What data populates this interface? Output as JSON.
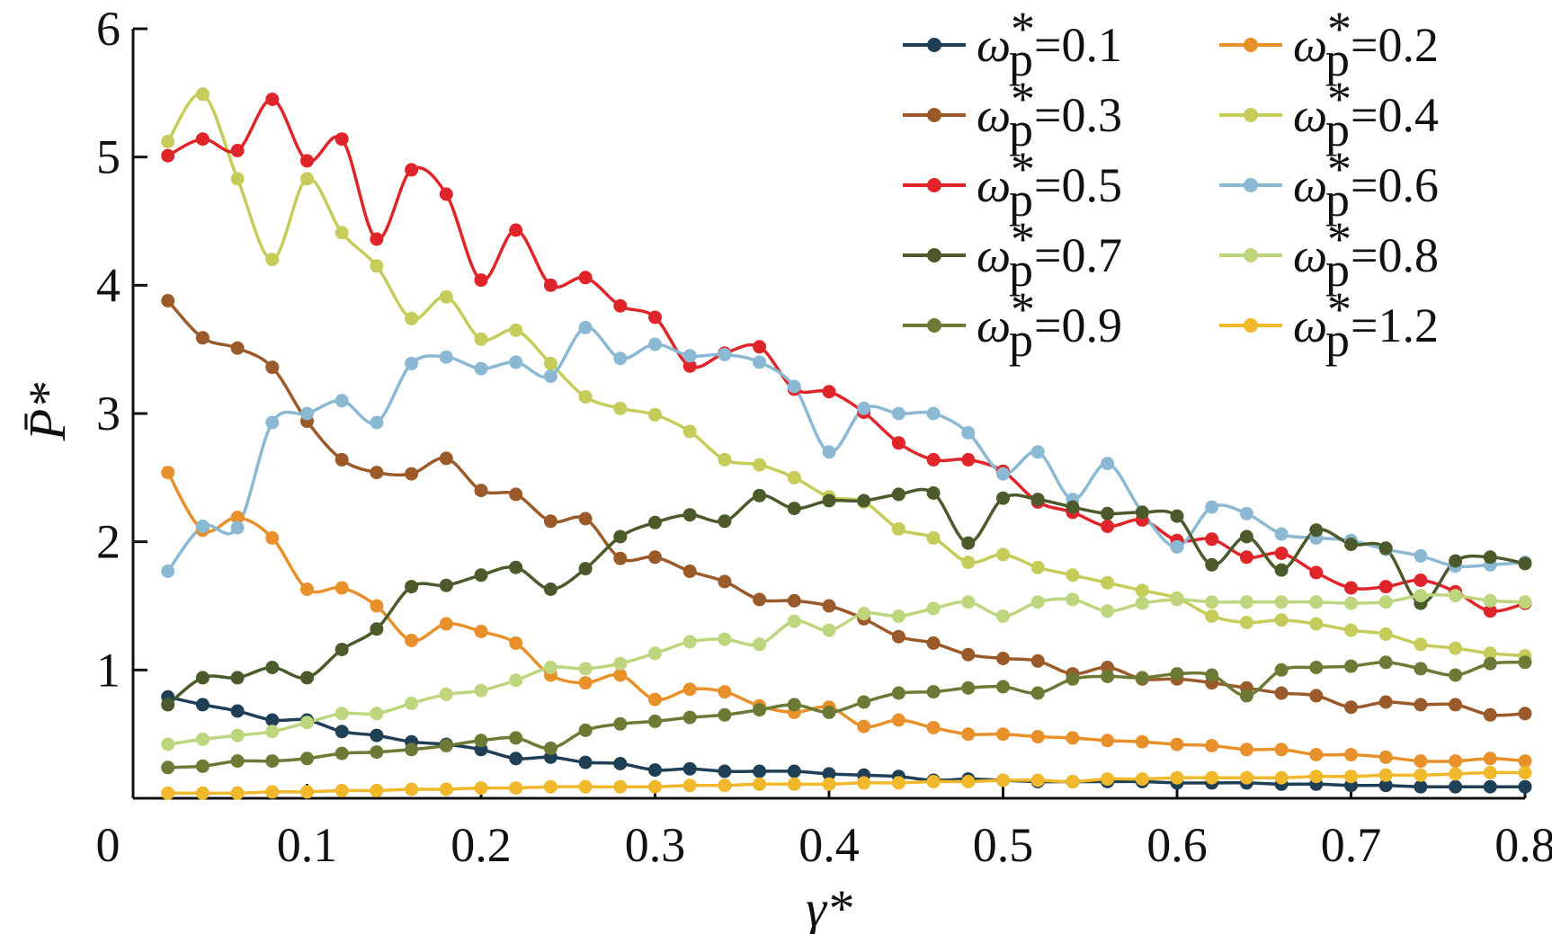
{
  "chart_data": {
    "type": "line",
    "xlabel": "γ*",
    "ylabel": "P̄*",
    "xlim": [
      0,
      0.8
    ],
    "ylim": [
      0,
      6
    ],
    "xticks": [
      0.1,
      0.2,
      0.3,
      0.4,
      0.5,
      0.6,
      0.7,
      0.8
    ],
    "xtick_labels": [
      "0.1",
      "0.2",
      "0.3",
      "0.4",
      "0.5",
      "0.6",
      "0.7",
      "0.8"
    ],
    "yticks": [
      1,
      2,
      3,
      4,
      5,
      6
    ],
    "ytick_labels": [
      "1",
      "2",
      "3",
      "4",
      "5",
      "6"
    ],
    "origin_label": "0",
    "grid": false,
    "legend_position": "top-right",
    "legend_columns": 2,
    "x": [
      0.02,
      0.04,
      0.06,
      0.08,
      0.1,
      0.12,
      0.14,
      0.16,
      0.18,
      0.2,
      0.22,
      0.24,
      0.26,
      0.28,
      0.3,
      0.32,
      0.34,
      0.36,
      0.38,
      0.4,
      0.42,
      0.44,
      0.46,
      0.48,
      0.5,
      0.52,
      0.54,
      0.56,
      0.58,
      0.6,
      0.62,
      0.64,
      0.66,
      0.68,
      0.7,
      0.72,
      0.74,
      0.76,
      0.78,
      0.8
    ],
    "series": [
      {
        "name": "0.1",
        "color": "#1e3f55",
        "values": [
          0.79,
          0.73,
          0.68,
          0.61,
          0.61,
          0.52,
          0.49,
          0.44,
          0.42,
          0.38,
          0.31,
          0.32,
          0.28,
          0.27,
          0.22,
          0.23,
          0.21,
          0.21,
          0.21,
          0.19,
          0.18,
          0.17,
          0.14,
          0.15,
          0.14,
          0.13,
          0.13,
          0.13,
          0.13,
          0.12,
          0.12,
          0.12,
          0.11,
          0.11,
          0.1,
          0.1,
          0.09,
          0.09,
          0.09,
          0.09
        ]
      },
      {
        "name": "0.2",
        "color": "#e8912b",
        "values": [
          2.54,
          2.09,
          2.19,
          2.03,
          1.63,
          1.64,
          1.5,
          1.23,
          1.36,
          1.3,
          1.21,
          0.96,
          0.9,
          0.96,
          0.77,
          0.85,
          0.83,
          0.72,
          0.67,
          0.71,
          0.56,
          0.61,
          0.55,
          0.5,
          0.5,
          0.48,
          0.47,
          0.45,
          0.44,
          0.42,
          0.41,
          0.38,
          0.38,
          0.34,
          0.34,
          0.32,
          0.29,
          0.29,
          0.31,
          0.29
        ]
      },
      {
        "name": "0.3",
        "color": "#9b5a2a",
        "values": [
          3.88,
          3.59,
          3.51,
          3.36,
          2.94,
          2.64,
          2.54,
          2.53,
          2.65,
          2.4,
          2.37,
          2.16,
          2.18,
          1.87,
          1.88,
          1.77,
          1.69,
          1.55,
          1.54,
          1.5,
          1.4,
          1.26,
          1.21,
          1.12,
          1.09,
          1.07,
          0.97,
          1.02,
          0.93,
          0.93,
          0.9,
          0.86,
          0.82,
          0.8,
          0.71,
          0.75,
          0.73,
          0.73,
          0.65,
          0.66
        ]
      },
      {
        "name": "0.4",
        "color": "#c5cc5a",
        "values": [
          5.12,
          5.49,
          4.83,
          4.2,
          4.83,
          4.41,
          4.15,
          3.74,
          3.91,
          3.58,
          3.65,
          3.39,
          3.13,
          3.04,
          2.99,
          2.86,
          2.64,
          2.6,
          2.5,
          2.35,
          2.31,
          2.1,
          2.03,
          1.84,
          1.9,
          1.8,
          1.74,
          1.68,
          1.62,
          1.56,
          1.42,
          1.37,
          1.39,
          1.36,
          1.31,
          1.28,
          1.2,
          1.17,
          1.13,
          1.11
        ]
      },
      {
        "name": "0.5",
        "color": "#e0252a",
        "values": [
          5.01,
          5.14,
          5.05,
          5.45,
          4.97,
          5.14,
          4.36,
          4.9,
          4.71,
          4.04,
          4.43,
          4.0,
          4.06,
          3.84,
          3.75,
          3.37,
          3.47,
          3.52,
          3.19,
          3.17,
          3.01,
          2.77,
          2.64,
          2.64,
          2.55,
          2.31,
          2.23,
          2.12,
          2.17,
          2.01,
          2.02,
          1.88,
          1.91,
          1.76,
          1.64,
          1.65,
          1.7,
          1.61,
          1.46,
          1.52
        ]
      },
      {
        "name": "0.6",
        "color": "#8bb8d2",
        "values": [
          1.77,
          2.12,
          2.11,
          2.93,
          3.0,
          3.1,
          2.93,
          3.39,
          3.44,
          3.35,
          3.4,
          3.29,
          3.67,
          3.43,
          3.54,
          3.45,
          3.46,
          3.4,
          3.21,
          2.7,
          3.04,
          3.0,
          3.0,
          2.85,
          2.53,
          2.7,
          2.33,
          2.61,
          2.23,
          1.96,
          2.27,
          2.22,
          2.06,
          2.03,
          2.01,
          1.94,
          1.89,
          1.81,
          1.82,
          1.84
        ]
      },
      {
        "name": "0.7",
        "color": "#4a5a2a",
        "values": [
          0.73,
          0.94,
          0.94,
          1.02,
          0.94,
          1.16,
          1.32,
          1.65,
          1.66,
          1.74,
          1.8,
          1.63,
          1.79,
          2.04,
          2.15,
          2.21,
          2.16,
          2.36,
          2.26,
          2.32,
          2.32,
          2.37,
          2.38,
          1.99,
          2.34,
          2.33,
          2.27,
          2.22,
          2.23,
          2.2,
          1.82,
          2.04,
          1.78,
          2.09,
          1.98,
          1.95,
          1.52,
          1.85,
          1.88,
          1.83
        ]
      },
      {
        "name": "0.8",
        "color": "#bdd67e",
        "values": [
          0.42,
          0.46,
          0.49,
          0.52,
          0.59,
          0.66,
          0.66,
          0.74,
          0.81,
          0.84,
          0.92,
          1.02,
          1.01,
          1.05,
          1.13,
          1.22,
          1.24,
          1.2,
          1.38,
          1.31,
          1.44,
          1.42,
          1.48,
          1.53,
          1.42,
          1.53,
          1.55,
          1.46,
          1.52,
          1.55,
          1.53,
          1.53,
          1.53,
          1.53,
          1.52,
          1.53,
          1.58,
          1.58,
          1.54,
          1.53
        ]
      },
      {
        "name": "0.9",
        "color": "#6b7a35",
        "values": [
          0.24,
          0.25,
          0.29,
          0.29,
          0.31,
          0.35,
          0.36,
          0.38,
          0.41,
          0.45,
          0.47,
          0.39,
          0.53,
          0.58,
          0.6,
          0.63,
          0.65,
          0.69,
          0.73,
          0.67,
          0.75,
          0.82,
          0.83,
          0.86,
          0.87,
          0.82,
          0.93,
          0.95,
          0.94,
          0.97,
          0.96,
          0.8,
          1.0,
          1.02,
          1.03,
          1.06,
          1.01,
          0.96,
          1.05,
          1.06
        ]
      },
      {
        "name": "1.2",
        "color": "#f0b82a",
        "values": [
          0.04,
          0.04,
          0.04,
          0.05,
          0.05,
          0.06,
          0.06,
          0.07,
          0.07,
          0.08,
          0.08,
          0.09,
          0.09,
          0.09,
          0.09,
          0.1,
          0.1,
          0.11,
          0.11,
          0.11,
          0.12,
          0.12,
          0.13,
          0.13,
          0.14,
          0.14,
          0.13,
          0.15,
          0.15,
          0.16,
          0.16,
          0.16,
          0.16,
          0.17,
          0.17,
          0.18,
          0.18,
          0.19,
          0.2,
          0.2
        ]
      }
    ]
  }
}
